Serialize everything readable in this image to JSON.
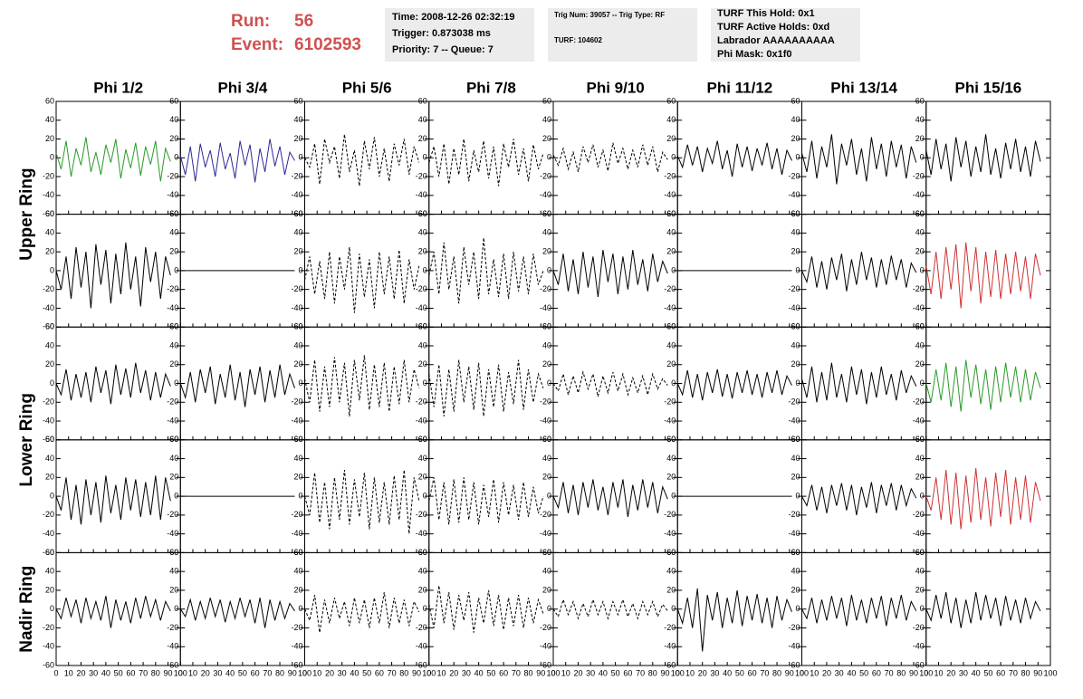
{
  "header": {
    "run_label": "Run:",
    "run": "56",
    "event_label": "Event:",
    "event": "6102593",
    "box1": [
      "Time: 2008-12-26 02:32:19",
      "Trigger: 0.873038 ms",
      "Priority: 7 -- Queue: 7"
    ],
    "box2": [
      "Trig Num: 39057 -- Trig Type: RF",
      "TURF: 104602"
    ],
    "box3": [
      "TURF This Hold: 0x1",
      "TURF Active Holds: 0xd",
      "Labrador AAAAAAAAAA",
      "Phi Mask: 0x1f0"
    ]
  },
  "columns": [
    "Phi 1/2",
    "Phi 3/4",
    "Phi 5/6",
    "Phi 7/8",
    "Phi 9/10",
    "Phi 11/12",
    "Phi 13/14",
    "Phi 15/16"
  ],
  "ring_labels": [
    "Upper Ring",
    "Lower Ring",
    "Nadir Ring"
  ],
  "axes": {
    "ylim": [
      -60,
      60
    ],
    "yticks": [
      -60,
      -40,
      -20,
      0,
      20,
      40,
      60
    ],
    "xlim": [
      0,
      100
    ],
    "xticks": [
      0,
      10,
      20,
      30,
      40,
      50,
      60,
      70,
      80,
      90,
      100
    ]
  },
  "sample_x": [
    0,
    4,
    8,
    12,
    16,
    20,
    24,
    28,
    32,
    36,
    40,
    44,
    48,
    52,
    56,
    60,
    64,
    68,
    72,
    76,
    80,
    84,
    88,
    92
  ],
  "rows": [
    [
      {
        "color": "#2a9a2a",
        "dashed": false,
        "values": [
          5,
          -12,
          18,
          -20,
          10,
          -8,
          22,
          -15,
          6,
          -18,
          14,
          -5,
          20,
          -22,
          9,
          -11,
          16,
          -19,
          12,
          -7,
          18,
          -25,
          10,
          -4
        ]
      },
      {
        "color": "#2a2a9a",
        "dashed": false,
        "values": [
          2,
          -18,
          12,
          -25,
          15,
          -10,
          8,
          -20,
          16,
          -12,
          5,
          -22,
          18,
          -8,
          14,
          -26,
          10,
          -15,
          20,
          -9,
          12,
          -18,
          6,
          -3
        ]
      },
      {
        "color": "#000000",
        "dashed": true,
        "values": [
          0,
          -10,
          15,
          -28,
          20,
          -5,
          12,
          -22,
          25,
          -15,
          8,
          -30,
          18,
          -12,
          22,
          -20,
          10,
          -25,
          15,
          -8,
          20,
          -18,
          12,
          -5
        ]
      },
      {
        "color": "#000000",
        "dashed": true,
        "values": [
          -5,
          12,
          -20,
          15,
          -28,
          10,
          -18,
          20,
          -25,
          8,
          -15,
          18,
          -22,
          12,
          -30,
          15,
          -10,
          20,
          -18,
          10,
          -25,
          14,
          -12,
          5
        ]
      },
      {
        "color": "#000000",
        "dashed": true,
        "values": [
          3,
          -8,
          10,
          -12,
          6,
          -15,
          12,
          -5,
          14,
          -10,
          8,
          -14,
          16,
          -6,
          10,
          -12,
          8,
          -10,
          14,
          -8,
          12,
          -15,
          6,
          -2
        ]
      },
      {
        "color": "#000000",
        "dashed": false,
        "values": [
          2,
          -10,
          14,
          -8,
          12,
          -15,
          10,
          -6,
          18,
          -12,
          8,
          -20,
          15,
          -10,
          12,
          -14,
          10,
          -8,
          16,
          -12,
          10,
          -18,
          8,
          -3
        ]
      },
      {
        "color": "#000000",
        "dashed": false,
        "values": [
          5,
          -15,
          18,
          -22,
          12,
          -10,
          25,
          -28,
          15,
          -8,
          20,
          -18,
          10,
          -25,
          22,
          -12,
          15,
          -20,
          18,
          -10,
          14,
          -22,
          12,
          -5
        ]
      },
      {
        "color": "#000000",
        "dashed": false,
        "values": [
          8,
          -18,
          20,
          -12,
          15,
          -25,
          22,
          -10,
          18,
          -20,
          12,
          -15,
          25,
          -18,
          10,
          -22,
          16,
          -12,
          20,
          -15,
          12,
          -20,
          18,
          -4
        ]
      }
    ],
    [
      {
        "color": "#000000",
        "dashed": false,
        "values": [
          0,
          -20,
          15,
          -30,
          25,
          -18,
          20,
          -40,
          28,
          -15,
          22,
          -35,
          18,
          -25,
          30,
          -20,
          15,
          -38,
          25,
          -12,
          20,
          -30,
          15,
          -5
        ]
      },
      {
        "color": "#000000",
        "dashed": false,
        "values": [
          0,
          0,
          0,
          0,
          0,
          0,
          0,
          0,
          0,
          0,
          0,
          0,
          0,
          0,
          0,
          0,
          0,
          0,
          0,
          0,
          0,
          0,
          0,
          0
        ]
      },
      {
        "color": "#000000",
        "dashed": true,
        "values": [
          -10,
          15,
          -25,
          10,
          -30,
          20,
          -35,
          15,
          -20,
          25,
          -45,
          18,
          -28,
          12,
          -40,
          20,
          -25,
          15,
          -30,
          22,
          -35,
          12,
          -20,
          5
        ]
      },
      {
        "color": "#000000",
        "dashed": true,
        "values": [
          -5,
          20,
          -25,
          30,
          -20,
          15,
          -35,
          25,
          -15,
          20,
          -30,
          35,
          -25,
          12,
          -28,
          18,
          -30,
          20,
          -22,
          15,
          -25,
          18,
          -15,
          0
        ]
      },
      {
        "color": "#000000",
        "dashed": false,
        "values": [
          0,
          -15,
          18,
          -22,
          12,
          -25,
          20,
          -18,
          15,
          -28,
          22,
          -12,
          18,
          -25,
          15,
          -20,
          22,
          -15,
          12,
          -22,
          18,
          -12,
          10,
          -3
        ]
      },
      {
        "color": "#000000",
        "dashed": false,
        "values": [
          0,
          0,
          0,
          0,
          0,
          0,
          0,
          0,
          0,
          0,
          0,
          0,
          0,
          0,
          0,
          0,
          0,
          0,
          0,
          0,
          0,
          0,
          0,
          0
        ]
      },
      {
        "color": "#000000",
        "dashed": false,
        "values": [
          0,
          -12,
          15,
          -18,
          10,
          -20,
          14,
          -10,
          18,
          -22,
          12,
          -15,
          20,
          -10,
          14,
          -18,
          12,
          -15,
          16,
          -10,
          12,
          -18,
          8,
          -2
        ]
      },
      {
        "color": "#cc3333",
        "dashed": false,
        "values": [
          5,
          -25,
          20,
          -30,
          25,
          -20,
          28,
          -40,
          30,
          -22,
          25,
          -35,
          20,
          -28,
          22,
          -30,
          18,
          -25,
          20,
          -22,
          15,
          -30,
          18,
          -5
        ]
      }
    ],
    [
      {
        "color": "#000000",
        "dashed": false,
        "values": [
          0,
          -12,
          15,
          -18,
          10,
          -15,
          12,
          -20,
          18,
          -10,
          14,
          -22,
          20,
          -12,
          16,
          -15,
          22,
          -10,
          14,
          -18,
          12,
          -15,
          10,
          -3
        ]
      },
      {
        "color": "#000000",
        "dashed": false,
        "values": [
          0,
          -15,
          12,
          -20,
          15,
          -10,
          18,
          -22,
          10,
          -15,
          20,
          -18,
          12,
          -25,
          15,
          -12,
          18,
          -20,
          14,
          -15,
          20,
          -12,
          10,
          -5
        ]
      },
      {
        "color": "#000000",
        "dashed": true,
        "values": [
          5,
          -20,
          25,
          -30,
          18,
          -25,
          28,
          -20,
          22,
          -35,
          25,
          -18,
          30,
          -28,
          20,
          -25,
          22,
          -30,
          18,
          -22,
          25,
          -20,
          15,
          -5
        ]
      },
      {
        "color": "#000000",
        "dashed": true,
        "values": [
          10,
          -25,
          20,
          -35,
          15,
          -30,
          25,
          -20,
          18,
          -28,
          22,
          -35,
          15,
          -25,
          20,
          -30,
          12,
          -22,
          25,
          -28,
          15,
          -20,
          10,
          -5
        ]
      },
      {
        "color": "#000000",
        "dashed": true,
        "values": [
          0,
          -8,
          10,
          -12,
          8,
          -10,
          12,
          -6,
          10,
          -14,
          8,
          -10,
          12,
          -8,
          10,
          -12,
          6,
          -10,
          8,
          -12,
          10,
          -6,
          5,
          -2
        ]
      },
      {
        "color": "#000000",
        "dashed": false,
        "values": [
          0,
          -12,
          14,
          -15,
          10,
          -18,
          12,
          -10,
          15,
          -14,
          10,
          -16,
          12,
          -10,
          14,
          -12,
          10,
          -15,
          12,
          -10,
          14,
          -12,
          8,
          -2
        ]
      },
      {
        "color": "#000000",
        "dashed": false,
        "values": [
          5,
          -15,
          18,
          -20,
          12,
          -18,
          22,
          -15,
          10,
          -20,
          18,
          -12,
          15,
          -22,
          12,
          -15,
          18,
          -12,
          10,
          -18,
          14,
          -10,
          8,
          -3
        ]
      },
      {
        "color": "#2a9a2a",
        "dashed": false,
        "values": [
          0,
          -20,
          15,
          -18,
          22,
          -25,
          18,
          -30,
          25,
          -15,
          20,
          -22,
          15,
          -28,
          18,
          -20,
          22,
          -15,
          18,
          -20,
          15,
          -18,
          12,
          -5
        ]
      }
    ],
    [
      {
        "color": "#000000",
        "dashed": false,
        "values": [
          0,
          -15,
          20,
          -25,
          12,
          -30,
          18,
          -20,
          15,
          -28,
          22,
          -18,
          12,
          -25,
          20,
          -15,
          18,
          -22,
          15,
          -20,
          22,
          -25,
          20,
          -5
        ]
      },
      {
        "color": "#000000",
        "dashed": false,
        "values": [
          0,
          0,
          0,
          0,
          0,
          0,
          0,
          0,
          0,
          0,
          0,
          0,
          0,
          0,
          0,
          0,
          0,
          0,
          0,
          0,
          0,
          0,
          0,
          0
        ]
      },
      {
        "color": "#000000",
        "dashed": true,
        "values": [
          0,
          -20,
          25,
          -28,
          15,
          -35,
          20,
          -25,
          28,
          -30,
          18,
          -22,
          25,
          -35,
          20,
          -28,
          15,
          -30,
          22,
          -25,
          28,
          -40,
          20,
          -5
        ]
      },
      {
        "color": "#000000",
        "dashed": true,
        "values": [
          -5,
          20,
          -25,
          15,
          -30,
          18,
          -28,
          20,
          -25,
          15,
          -30,
          12,
          -22,
          18,
          -28,
          15,
          -20,
          12,
          -25,
          15,
          -22,
          10,
          -18,
          0
        ]
      },
      {
        "color": "#000000",
        "dashed": false,
        "values": [
          0,
          -12,
          15,
          -18,
          12,
          -20,
          15,
          -12,
          18,
          -15,
          10,
          -20,
          15,
          -12,
          18,
          -22,
          12,
          -15,
          18,
          -12,
          15,
          -18,
          10,
          -3
        ]
      },
      {
        "color": "#000000",
        "dashed": false,
        "values": [
          0,
          0,
          0,
          0,
          0,
          0,
          0,
          0,
          0,
          0,
          0,
          0,
          0,
          0,
          0,
          0,
          0,
          0,
          0,
          0,
          0,
          0,
          0,
          0
        ]
      },
      {
        "color": "#000000",
        "dashed": false,
        "values": [
          0,
          -10,
          12,
          -15,
          10,
          -18,
          12,
          -10,
          14,
          -15,
          12,
          -20,
          10,
          -12,
          15,
          -18,
          12,
          -10,
          14,
          -15,
          12,
          -10,
          8,
          -2
        ]
      },
      {
        "color": "#cc3333",
        "dashed": false,
        "values": [
          0,
          -15,
          20,
          -25,
          28,
          -30,
          25,
          -35,
          22,
          -28,
          30,
          -25,
          20,
          -32,
          25,
          -22,
          28,
          -30,
          20,
          -25,
          22,
          -28,
          15,
          -5
        ]
      }
    ],
    [
      {
        "color": "#000000",
        "dashed": false,
        "values": [
          0,
          -10,
          12,
          -8,
          10,
          -15,
          12,
          -10,
          8,
          -12,
          14,
          -20,
          10,
          -12,
          8,
          -15,
          12,
          -10,
          14,
          -8,
          10,
          -12,
          8,
          -2
        ]
      },
      {
        "color": "#000000",
        "dashed": false,
        "values": [
          0,
          -8,
          10,
          -12,
          8,
          -10,
          12,
          -8,
          10,
          -14,
          8,
          -10,
          12,
          -8,
          10,
          -15,
          12,
          -20,
          10,
          -12,
          8,
          -10,
          6,
          -2
        ]
      },
      {
        "color": "#000000",
        "dashed": true,
        "values": [
          0,
          -12,
          15,
          -25,
          10,
          -15,
          12,
          -10,
          8,
          -18,
          12,
          -15,
          10,
          -20,
          12,
          -15,
          18,
          -20,
          12,
          -15,
          10,
          -18,
          8,
          -3
        ]
      },
      {
        "color": "#000000",
        "dashed": true,
        "values": [
          5,
          -20,
          25,
          -15,
          18,
          -22,
          15,
          -12,
          18,
          -25,
          12,
          -15,
          20,
          -18,
          15,
          -22,
          12,
          -18,
          15,
          -20,
          12,
          -15,
          10,
          -5
        ]
      },
      {
        "color": "#000000",
        "dashed": true,
        "values": [
          0,
          -8,
          10,
          -6,
          8,
          -10,
          6,
          -8,
          10,
          -6,
          8,
          -10,
          8,
          -6,
          10,
          -8,
          6,
          -10,
          8,
          -6,
          8,
          -8,
          5,
          -2
        ]
      },
      {
        "color": "#000000",
        "dashed": false,
        "values": [
          0,
          -15,
          12,
          -20,
          22,
          -45,
          15,
          -12,
          18,
          -20,
          12,
          -15,
          20,
          -18,
          14,
          -12,
          16,
          -15,
          12,
          -20,
          14,
          -12,
          10,
          -3
        ]
      },
      {
        "color": "#000000",
        "dashed": false,
        "values": [
          0,
          -10,
          12,
          -15,
          10,
          -12,
          14,
          -10,
          12,
          -18,
          15,
          -12,
          10,
          -15,
          12,
          -10,
          14,
          -18,
          12,
          -10,
          15,
          -12,
          8,
          -2
        ]
      },
      {
        "color": "#000000",
        "dashed": false,
        "values": [
          0,
          -12,
          15,
          -10,
          18,
          -15,
          12,
          -20,
          10,
          -15,
          18,
          -12,
          15,
          -10,
          12,
          -18,
          14,
          -12,
          10,
          -15,
          12,
          -10,
          8,
          -2
        ]
      }
    ]
  ]
}
